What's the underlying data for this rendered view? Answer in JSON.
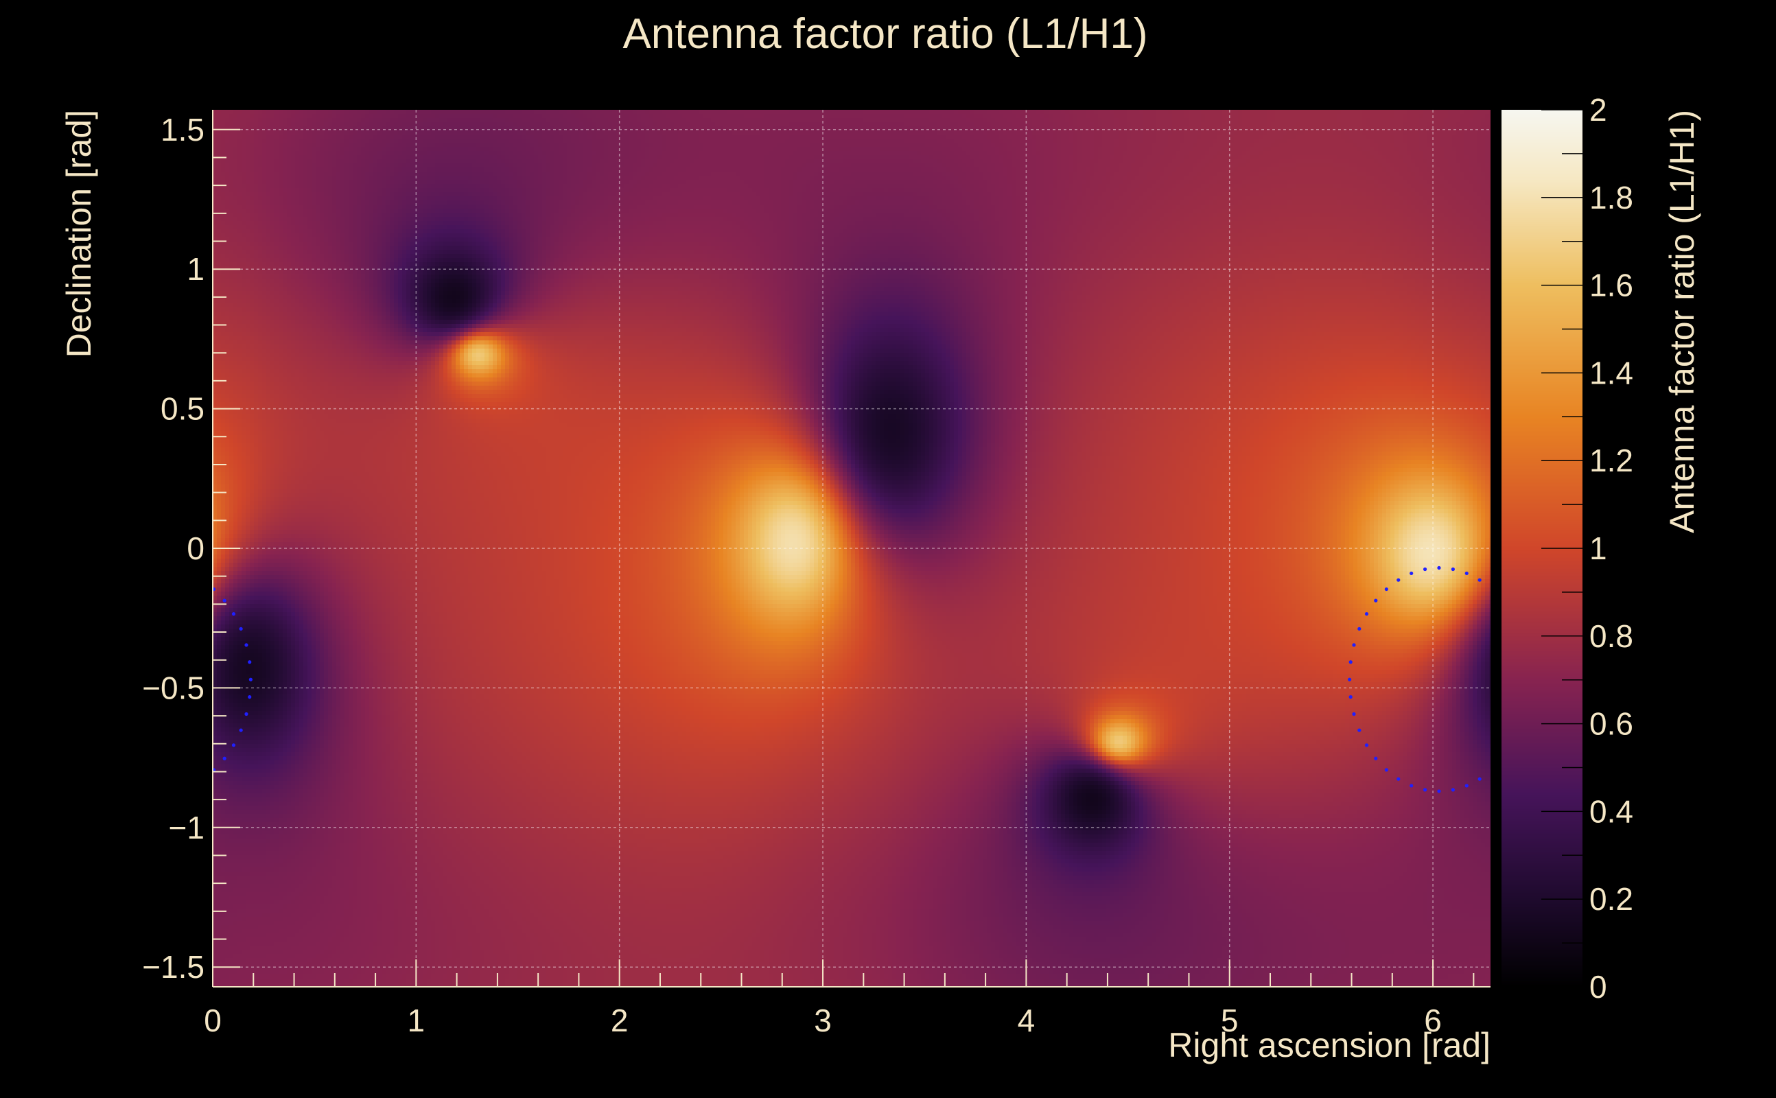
{
  "chart_data": {
    "type": "heatmap",
    "title": "Antenna factor ratio (L1/H1)",
    "xlabel": "Right ascension [rad]",
    "ylabel": "Declination [rad]",
    "zlabel": "Antenna factor ratio (L1/H1)",
    "xlim": [
      0,
      6.2832
    ],
    "ylim": [
      -1.5708,
      1.5708
    ],
    "zlim": [
      0,
      2
    ],
    "x_ticks": [
      "0",
      "1",
      "2",
      "3",
      "4",
      "5",
      "6"
    ],
    "y_ticks": [
      "−1.5",
      "−1",
      "−0.5",
      "0",
      "0.5",
      "1",
      "1.5"
    ],
    "z_ticks": [
      "0",
      "0.2",
      "0.4",
      "0.6",
      "0.8",
      "1",
      "1.2",
      "1.4",
      "1.6",
      "1.8",
      "2"
    ],
    "grid": true,
    "colormap": "inferno-like (black → purple → red → orange → white)",
    "background": "#000000",
    "text_color": "#f5e7c6",
    "features": [
      {
        "kind": "maximum",
        "x": 1.3,
        "y": 0.7,
        "value": 2.0,
        "width": 0.14,
        "height": 0.09
      },
      {
        "kind": "maximum",
        "x": 2.87,
        "y": 0.03,
        "value": 2.0,
        "width": 0.27,
        "height": 0.27
      },
      {
        "kind": "maximum",
        "x": 4.45,
        "y": -0.7,
        "value": 2.0,
        "width": 0.14,
        "height": 0.09
      },
      {
        "kind": "maximum",
        "x": 6.0,
        "y": -0.02,
        "value": 2.0,
        "width": 0.27,
        "height": 0.24
      },
      {
        "kind": "minimum",
        "x": 1.19,
        "y": 0.88,
        "value": 0.0,
        "width": 0.22,
        "height": 0.17
      },
      {
        "kind": "minimum",
        "x": 3.32,
        "y": 0.4,
        "value": 0.0,
        "width": 0.35,
        "height": 0.38
      },
      {
        "kind": "minimum",
        "x": 4.33,
        "y": -0.88,
        "value": 0.0,
        "width": 0.22,
        "height": 0.17
      },
      {
        "kind": "minimum",
        "x": 0.17,
        "y": -0.41,
        "value": 0.0,
        "width": 0.3,
        "height": 0.32
      }
    ],
    "overlay_contour": {
      "style": "dotted",
      "color": "#2020ff",
      "center": [
        6.03,
        -0.47
      ],
      "radius_x": 0.44,
      "radius_y": 0.4
    }
  }
}
